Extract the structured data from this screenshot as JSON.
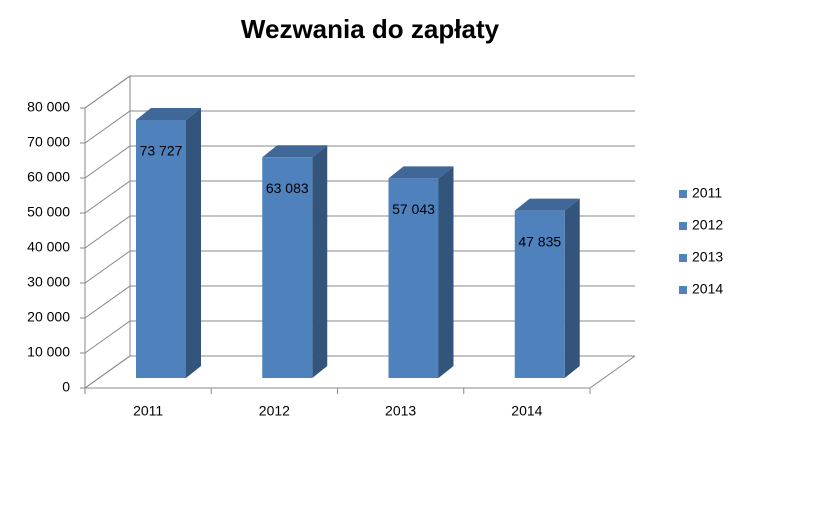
{
  "chart_data": {
    "type": "bar3d",
    "title": "Wezwania do zapłaty",
    "categories": [
      "2011",
      "2012",
      "2013",
      "2014"
    ],
    "values": [
      73727,
      63083,
      57043,
      47835
    ],
    "value_labels": [
      "73 727",
      "63 083",
      "57 043",
      "47 835"
    ],
    "color": "#4f81bd",
    "ylim": [
      0,
      80000
    ],
    "yticks": [
      {
        "value": 0,
        "label": "0"
      },
      {
        "value": 10000,
        "label": "10 000"
      },
      {
        "value": 20000,
        "label": "20 000"
      },
      {
        "value": 30000,
        "label": "30 000"
      },
      {
        "value": 40000,
        "label": "40 000"
      },
      {
        "value": 50000,
        "label": "50 000"
      },
      {
        "value": 60000,
        "label": "60 000"
      },
      {
        "value": 70000,
        "label": "70 000"
      },
      {
        "value": 80000,
        "label": "80 000"
      }
    ],
    "grid": true,
    "legend": "right"
  }
}
